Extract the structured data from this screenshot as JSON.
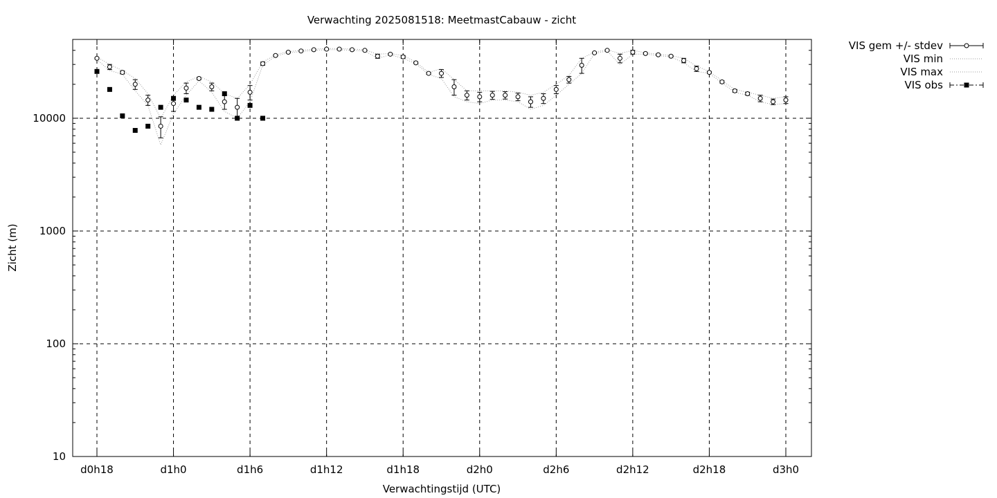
{
  "chart_data": {
    "type": "scatter",
    "title": "Verwachting 2025081518: MeetmastCabauw - zicht",
    "xlabel": "Verwachtingstijd (UTC)",
    "ylabel": "Zicht (m)",
    "y_scale": "log",
    "ylim": [
      10,
      50000
    ],
    "xlim": [
      -1,
      56
    ],
    "x_unit": "hours since d0h18",
    "grid": true,
    "legend_position": "outside-top-right",
    "x_ticks": [
      {
        "x": 0,
        "label": "d0h18"
      },
      {
        "x": 6,
        "label": "d1h0"
      },
      {
        "x": 12,
        "label": "d1h6"
      },
      {
        "x": 18,
        "label": "d1h12"
      },
      {
        "x": 24,
        "label": "d1h18"
      },
      {
        "x": 30,
        "label": "d2h0"
      },
      {
        "x": 36,
        "label": "d2h6"
      },
      {
        "x": 42,
        "label": "d2h12"
      },
      {
        "x": 48,
        "label": "d2h18"
      },
      {
        "x": 54,
        "label": "d3h0"
      }
    ],
    "y_ticks": [
      {
        "y": 10,
        "label": "10"
      },
      {
        "y": 100,
        "label": "100"
      },
      {
        "y": 1000,
        "label": "1000"
      },
      {
        "y": 10000,
        "label": "10000"
      }
    ],
    "series": [
      {
        "name": "VIS gem +/- stdev",
        "style": "open-circle-errorbar",
        "x": [
          0,
          1,
          2,
          3,
          4,
          5,
          6,
          7,
          8,
          9,
          10,
          11,
          12,
          13,
          14,
          15,
          16,
          17,
          18,
          19,
          20,
          21,
          22,
          23,
          24,
          25,
          26,
          27,
          28,
          29,
          30,
          31,
          32,
          33,
          34,
          35,
          36,
          37,
          38,
          39,
          40,
          41,
          42,
          43,
          44,
          45,
          46,
          47,
          48,
          49,
          50,
          51,
          52,
          53,
          54
        ],
        "y": [
          34000,
          28500,
          25500,
          20000,
          14500,
          8500,
          13500,
          18500,
          22500,
          19000,
          14000,
          12500,
          17000,
          30500,
          36000,
          38500,
          39500,
          40500,
          41000,
          41000,
          40500,
          40000,
          35500,
          37000,
          35000,
          31000,
          25000,
          25000,
          19000,
          16000,
          15500,
          16000,
          16000,
          15500,
          14000,
          15000,
          18000,
          22000,
          29500,
          38000,
          40000,
          34000,
          38500,
          37500,
          36500,
          35500,
          32500,
          27500,
          25500,
          21000,
          17500,
          16500,
          15000,
          14000,
          14500
        ],
        "stdev": [
          500,
          1500,
          800,
          2000,
          1500,
          1800,
          2000,
          2000,
          500,
          1500,
          2000,
          2500,
          2500,
          1000,
          500,
          500,
          500,
          500,
          500,
          500,
          500,
          500,
          1500,
          500,
          1000,
          500,
          500,
          2000,
          3000,
          1500,
          1500,
          1300,
          1200,
          1200,
          1500,
          1500,
          1500,
          1500,
          4500,
          500,
          500,
          3000,
          1500,
          500,
          500,
          500,
          1500,
          1500,
          500,
          500,
          500,
          500,
          1000,
          800,
          1000
        ]
      },
      {
        "name": "VIS min",
        "style": "dotted",
        "x": [
          0,
          1,
          2,
          3,
          4,
          5,
          6,
          7,
          8,
          9,
          10,
          11,
          12,
          13,
          14,
          15,
          16,
          17,
          18,
          19,
          20,
          21,
          22,
          23,
          24,
          25,
          26,
          27,
          28,
          29,
          30,
          31,
          32,
          33,
          34,
          35,
          36,
          37,
          38,
          39,
          40,
          41,
          42,
          43,
          44,
          45,
          46,
          47,
          48,
          49,
          50,
          51,
          52,
          53,
          54
        ],
        "y": [
          33000,
          26500,
          24500,
          17500,
          13000,
          5800,
          11000,
          16000,
          21500,
          17000,
          11500,
          10000,
          14000,
          29500,
          35500,
          38000,
          39000,
          40000,
          40500,
          40500,
          40000,
          39500,
          34000,
          36500,
          34000,
          30500,
          24500,
          22500,
          15500,
          14000,
          13500,
          14500,
          14500,
          14000,
          12000,
          13000,
          16000,
          20000,
          25000,
          37500,
          39500,
          30000,
          37000,
          37000,
          36000,
          35000,
          31000,
          26000,
          25000,
          20500,
          17000,
          16000,
          14000,
          13200,
          13500
        ]
      },
      {
        "name": "VIS max",
        "style": "dotted",
        "x": [
          0,
          1,
          2,
          3,
          4,
          5,
          6,
          7,
          8,
          9,
          10,
          11,
          12,
          13,
          14,
          15,
          16,
          17,
          18,
          19,
          20,
          21,
          22,
          23,
          24,
          25,
          26,
          27,
          28,
          29,
          30,
          31,
          32,
          33,
          34,
          35,
          36,
          37,
          38,
          39,
          40,
          41,
          42,
          43,
          44,
          45,
          46,
          47,
          48,
          49,
          50,
          51,
          52,
          53,
          54
        ],
        "y": [
          35000,
          30000,
          26500,
          22500,
          16500,
          10000,
          16000,
          21000,
          23500,
          21000,
          16500,
          15000,
          20000,
          31500,
          36500,
          39000,
          40000,
          41000,
          41500,
          41500,
          41000,
          40500,
          37000,
          37500,
          36000,
          31500,
          25500,
          27500,
          22000,
          17500,
          17500,
          17500,
          17500,
          17000,
          16000,
          17000,
          20000,
          24000,
          34000,
          38500,
          40500,
          37500,
          40000,
          38000,
          37000,
          36000,
          34000,
          29000,
          26000,
          21500,
          18000,
          17000,
          16000,
          15000,
          15500
        ]
      },
      {
        "name": "VIS obs",
        "style": "filled-square",
        "x": [
          0,
          1,
          2,
          3,
          4,
          5,
          6,
          7,
          8,
          9,
          10,
          11,
          12,
          13
        ],
        "y": [
          26000,
          18000,
          10500,
          7800,
          8500,
          12500,
          15000,
          14500,
          12500,
          12000,
          16500,
          10000,
          13000,
          10000
        ]
      }
    ]
  }
}
